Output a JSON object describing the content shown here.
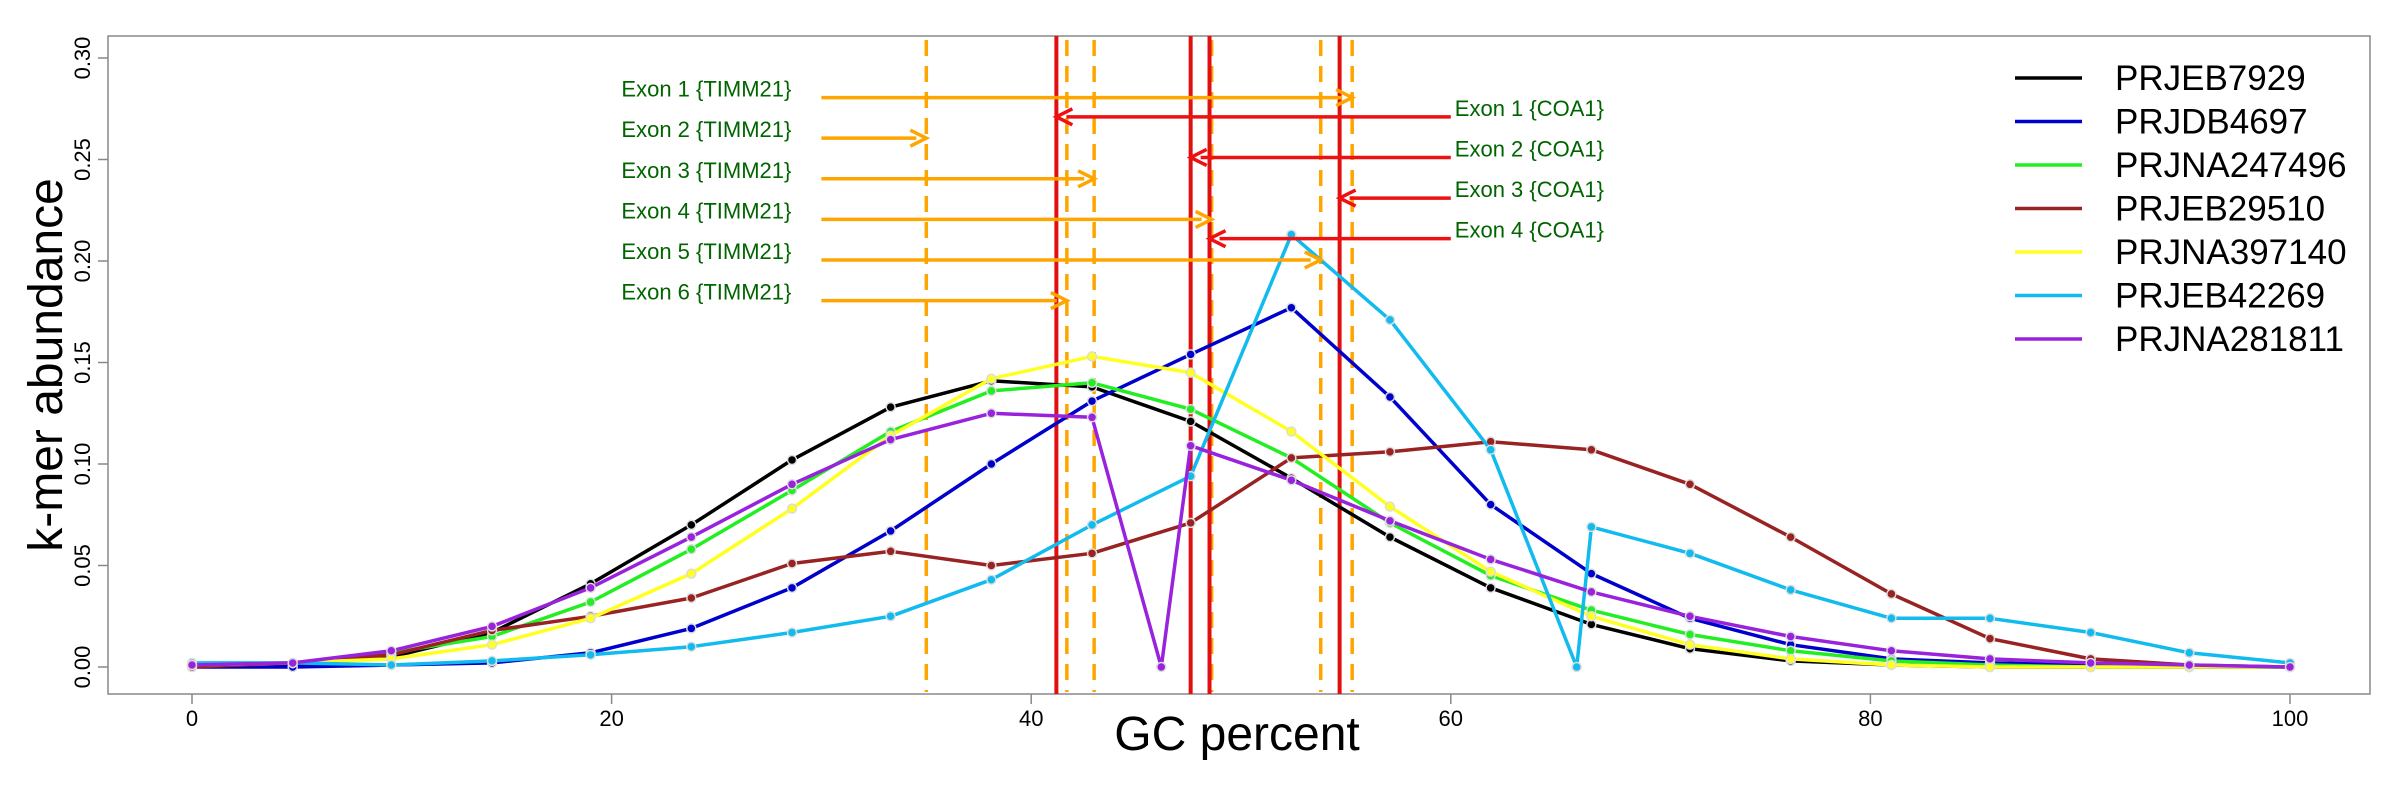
{
  "chart_data": {
    "type": "line",
    "xlabel": "GC percent",
    "ylabel": "k-mer abundance",
    "xlim": [
      -4,
      102
    ],
    "ylim": [
      -0.012,
      0.31
    ],
    "xticks": [
      0,
      20,
      40,
      60,
      80,
      100
    ],
    "yticks": [
      "0.00",
      "0.05",
      "0.10",
      "0.15",
      "0.20",
      "0.25",
      "0.30"
    ],
    "grid": false,
    "legend_position": "top-right",
    "x": [
      0,
      4.8,
      9.5,
      14.3,
      19,
      23.8,
      28.6,
      33.3,
      38.1,
      42.9,
      47.6,
      52.4,
      57.1,
      61.9,
      66.7,
      71.4,
      76.2,
      81,
      85.7,
      90.5,
      95.2,
      100
    ],
    "series": [
      {
        "name": "PRJEB7929",
        "color": "#000000",
        "values": [
          0.001,
          0.001,
          0.005,
          0.017,
          0.041,
          0.07,
          0.102,
          0.128,
          0.141,
          0.138,
          0.121,
          0.093,
          0.064,
          0.039,
          0.021,
          0.009,
          0.003,
          0.001,
          0.0,
          0.0,
          0.0,
          0.0
        ]
      },
      {
        "name": "PRJDB4697",
        "color": "#0000cc",
        "values": [
          0.0,
          0.0,
          0.001,
          0.002,
          0.007,
          0.019,
          0.039,
          0.067,
          0.1,
          0.131,
          0.154,
          0.177,
          0.133,
          0.08,
          0.046,
          0.024,
          0.011,
          0.004,
          0.002,
          0.001,
          0.0,
          0.0
        ]
      },
      {
        "name": "PRJNA247496",
        "color": "#22ee22",
        "values": [
          0.001,
          0.002,
          0.007,
          0.015,
          0.032,
          0.058,
          0.087,
          0.116,
          0.136,
          0.14,
          0.127,
          0.103,
          0.071,
          0.045,
          0.028,
          0.016,
          0.008,
          0.003,
          0.001,
          0.0,
          0.0,
          0.0
        ]
      },
      {
        "name": "PRJEB29510",
        "color": "#992222",
        "values": [
          0.0,
          0.002,
          0.006,
          0.018,
          0.025,
          0.034,
          0.051,
          0.057,
          0.05,
          0.056,
          0.071,
          0.103,
          0.106,
          0.111,
          0.107,
          0.09,
          0.064,
          0.036,
          0.014,
          0.004,
          0.001,
          0.0
        ]
      },
      {
        "name": "PRJNA397140",
        "color": "#ffff22",
        "values": [
          0.001,
          0.002,
          0.004,
          0.011,
          0.024,
          0.046,
          0.078,
          0.114,
          0.142,
          0.153,
          0.145,
          0.116,
          0.079,
          0.047,
          0.025,
          0.011,
          0.004,
          0.001,
          0.0,
          0.0,
          0.0,
          0.0
        ]
      },
      {
        "name": "PRJEB42269",
        "color": "#11bbee",
        "values": [
          0.002,
          0.002,
          0.001,
          0.003,
          0.006,
          0.01,
          0.017,
          0.025,
          0.043,
          0.07,
          0.094,
          0.213,
          0.171,
          0.107,
          0.0,
          0.069,
          0.056,
          0.038,
          0.024,
          0.024,
          0.017,
          0.007,
          0.002
        ],
        "x": [
          0,
          4.8,
          9.5,
          14.3,
          19,
          23.8,
          28.6,
          33.3,
          38.1,
          42.9,
          47.6,
          52.4,
          57.1,
          61.9,
          66.0,
          66.7,
          71.4,
          76.2,
          81,
          85.7,
          90.5,
          95.2,
          100
        ]
      },
      {
        "name": "PRJNA281811",
        "color": "#9922dd",
        "values": [
          0.001,
          0.002,
          0.008,
          0.02,
          0.039,
          0.064,
          0.09,
          0.112,
          0.125,
          0.123,
          0.0,
          0.109,
          0.092,
          0.072,
          0.053,
          0.037,
          0.025,
          0.015,
          0.008,
          0.004,
          0.002,
          0.001,
          0.0
        ],
        "x": [
          0,
          4.8,
          9.5,
          14.3,
          19,
          23.8,
          28.6,
          33.3,
          38.1,
          42.9,
          46.2,
          47.6,
          52.4,
          57.1,
          61.9,
          66.7,
          71.4,
          76.2,
          81,
          85.7,
          90.5,
          95.2,
          100
        ]
      }
    ],
    "vlines": {
      "orange_dashed": [
        35.0,
        41.7,
        43.0,
        48.6,
        53.8,
        55.3
      ],
      "red_solid": [
        41.2,
        47.6,
        48.5,
        54.7
      ]
    },
    "annotations": [
      {
        "text": "Exon 1 {TIMM21}",
        "y": 0.2805,
        "from_x": 30,
        "to_x": 55.3,
        "side": "left",
        "color": "#ffa500"
      },
      {
        "text": "Exon 2 {TIMM21}",
        "y": 0.2605,
        "from_x": 30,
        "to_x": 35.0,
        "side": "left",
        "color": "#ffa500"
      },
      {
        "text": "Exon 3 {TIMM21}",
        "y": 0.2405,
        "from_x": 30,
        "to_x": 43.0,
        "side": "left",
        "color": "#ffa500"
      },
      {
        "text": "Exon 4 {TIMM21}",
        "y": 0.2205,
        "from_x": 30,
        "to_x": 48.6,
        "side": "left",
        "color": "#ffa500"
      },
      {
        "text": "Exon 5 {TIMM21}",
        "y": 0.2005,
        "from_x": 30,
        "to_x": 53.8,
        "side": "left",
        "color": "#ffa500"
      },
      {
        "text": "Exon 6 {TIMM21}",
        "y": 0.1805,
        "from_x": 30,
        "to_x": 41.7,
        "side": "left",
        "color": "#ffa500"
      },
      {
        "text": "Exon 1 {COA1}",
        "y": 0.271,
        "from_x": 60,
        "to_x": 41.2,
        "side": "right",
        "color": "#ee1111"
      },
      {
        "text": "Exon 2 {COA1}",
        "y": 0.251,
        "from_x": 60,
        "to_x": 47.6,
        "side": "right",
        "color": "#ee1111"
      },
      {
        "text": "Exon 3 {COA1}",
        "y": 0.231,
        "from_x": 60,
        "to_x": 54.7,
        "side": "right",
        "color": "#ee1111"
      },
      {
        "text": "Exon 4 {COA1}",
        "y": 0.211,
        "from_x": 60,
        "to_x": 48.5,
        "side": "right",
        "color": "#ee1111"
      }
    ]
  }
}
